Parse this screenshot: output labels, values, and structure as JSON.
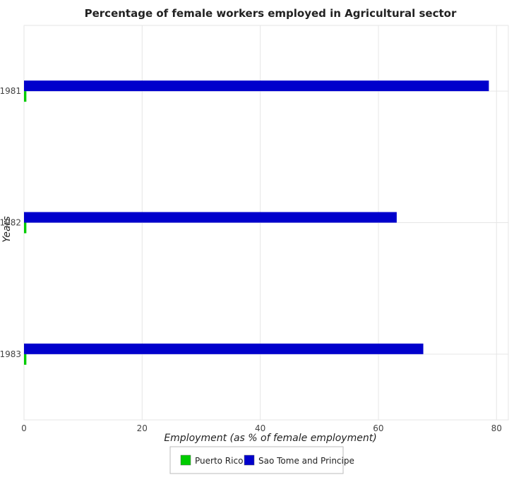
{
  "chart_data": {
    "type": "bar",
    "orientation": "horizontal",
    "title": "Percentage of female workers employed in Agricultural sector",
    "xlabel": "Employment (as % of female employment)",
    "ylabel": "Years",
    "categories": [
      "1981",
      "1982",
      "1983"
    ],
    "series": [
      {
        "name": "Puerto Rico",
        "color": "#00cc00",
        "values": [
          0.4,
          0.4,
          0.4
        ]
      },
      {
        "name": "Sao Tome and Principe",
        "color": "#0000cc",
        "values": [
          78.7,
          63.1,
          67.6
        ]
      }
    ],
    "xlim": [
      0,
      82
    ],
    "xticks": [
      0,
      20,
      40,
      60,
      80
    ],
    "grid": true,
    "legend": "bottom-center"
  }
}
